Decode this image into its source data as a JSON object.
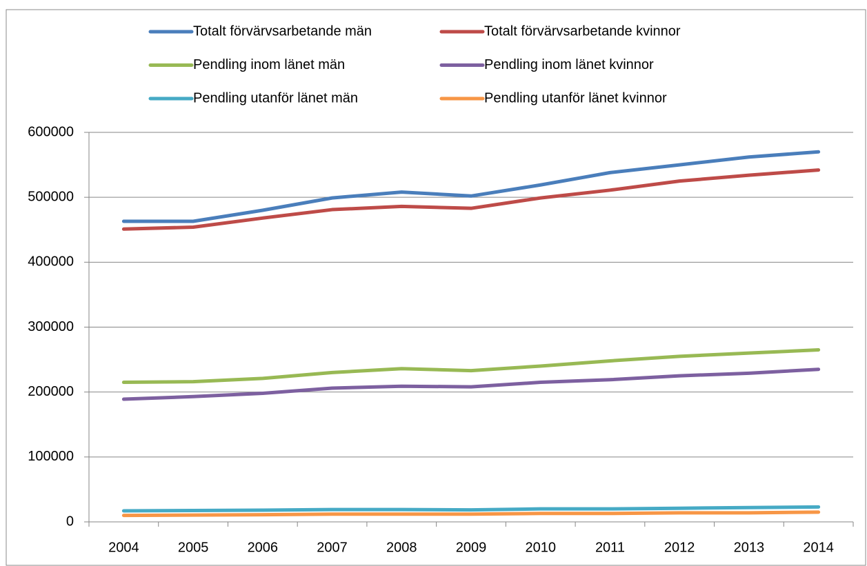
{
  "chart_data": {
    "type": "line",
    "categories": [
      "2004",
      "2005",
      "2006",
      "2007",
      "2008",
      "2009",
      "2010",
      "2011",
      "2012",
      "2013",
      "2014"
    ],
    "series": [
      {
        "name": "Totalt förvärvsarbetande män",
        "color": "#4a7ebb",
        "values": [
          463000,
          463000,
          480000,
          499000,
          508000,
          502000,
          519000,
          538000,
          550000,
          562000,
          570000
        ]
      },
      {
        "name": "Totalt förvärvsarbetande kvinnor",
        "color": "#be4b48",
        "values": [
          451000,
          454000,
          468000,
          481000,
          486000,
          483000,
          499000,
          511000,
          525000,
          534000,
          542000
        ]
      },
      {
        "name": "Pendling inom länet män",
        "color": "#98b954",
        "values": [
          215000,
          216000,
          221000,
          230000,
          236000,
          233000,
          240000,
          248000,
          255000,
          260000,
          265000
        ]
      },
      {
        "name": "Pendling inom länet kvinnor",
        "color": "#7d60a0",
        "values": [
          189000,
          193000,
          198000,
          206000,
          209000,
          208000,
          215000,
          219000,
          225000,
          229000,
          235000
        ]
      },
      {
        "name": "Pendling utanför länet män",
        "color": "#46aac5",
        "values": [
          17000,
          17500,
          18000,
          19000,
          19000,
          18500,
          20000,
          20000,
          21000,
          22000,
          23000
        ]
      },
      {
        "name": "Pendling utanför länet kvinnor",
        "color": "#f79646",
        "values": [
          10000,
          10500,
          11000,
          12000,
          12000,
          12000,
          13000,
          13000,
          14000,
          14000,
          15000
        ]
      }
    ],
    "ylim": [
      0,
      600000
    ],
    "yticks": [
      0,
      100000,
      200000,
      300000,
      400000,
      500000,
      600000
    ],
    "grid": true,
    "legend": "top"
  }
}
